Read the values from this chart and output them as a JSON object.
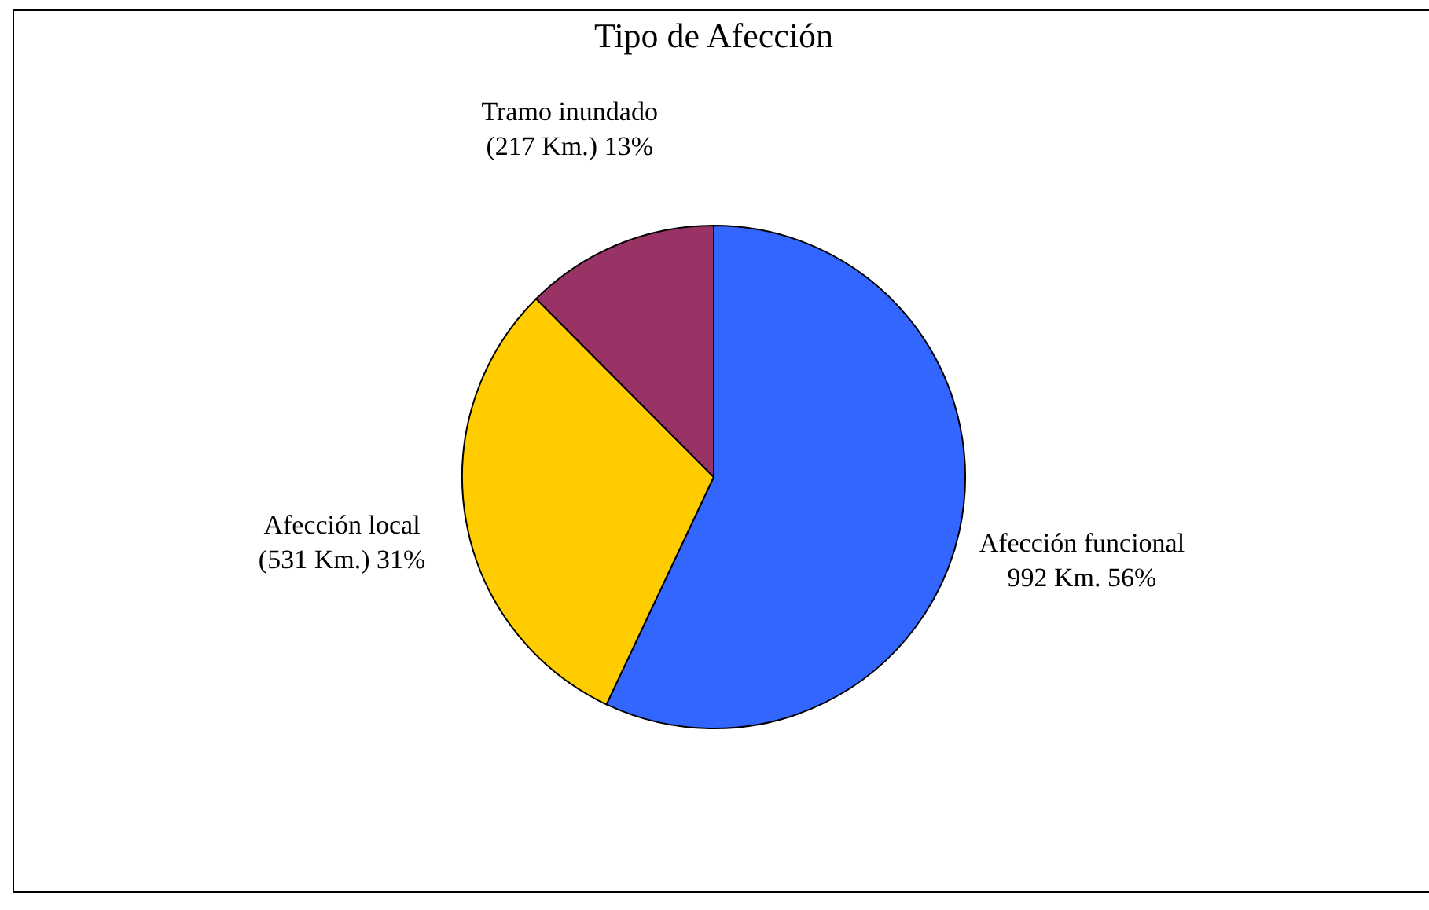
{
  "chart_data": {
    "type": "pie",
    "title": "Tipo de Afección",
    "categories": [
      "Afección funcional",
      "Afección local",
      "Tramo inundado"
    ],
    "values": [
      992,
      531,
      217
    ],
    "colors": [
      "#3366ff",
      "#ffcc00",
      "#993366"
    ],
    "value_labels": [
      "992 Km.   56%",
      "(531 Km.)  31%",
      "(217 Km.)  13%"
    ],
    "legend": false
  }
}
